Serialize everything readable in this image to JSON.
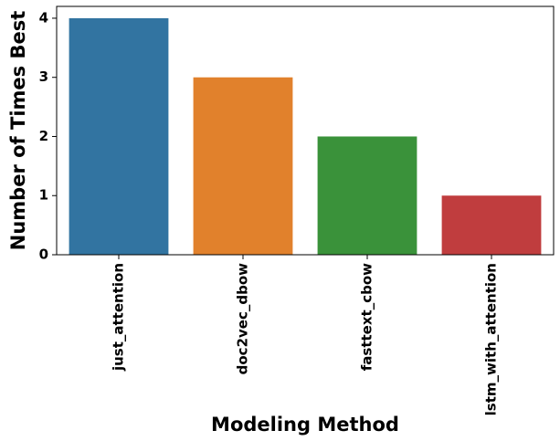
{
  "chart_data": {
    "type": "bar",
    "title": "",
    "xlabel": "Modeling Method",
    "ylabel": "Number of Times Best",
    "categories": [
      "just_attention",
      "doc2vec_dbow",
      "fasttext_cbow",
      "lstm_with_attention"
    ],
    "values": [
      4,
      3,
      2,
      1
    ],
    "colors": [
      "#3274a1",
      "#e1812c",
      "#3a923a",
      "#c03d3e"
    ],
    "ylim": [
      0,
      4.2
    ],
    "yticks": [
      0,
      1,
      2,
      3,
      4
    ],
    "grid": false,
    "legend": "none"
  }
}
